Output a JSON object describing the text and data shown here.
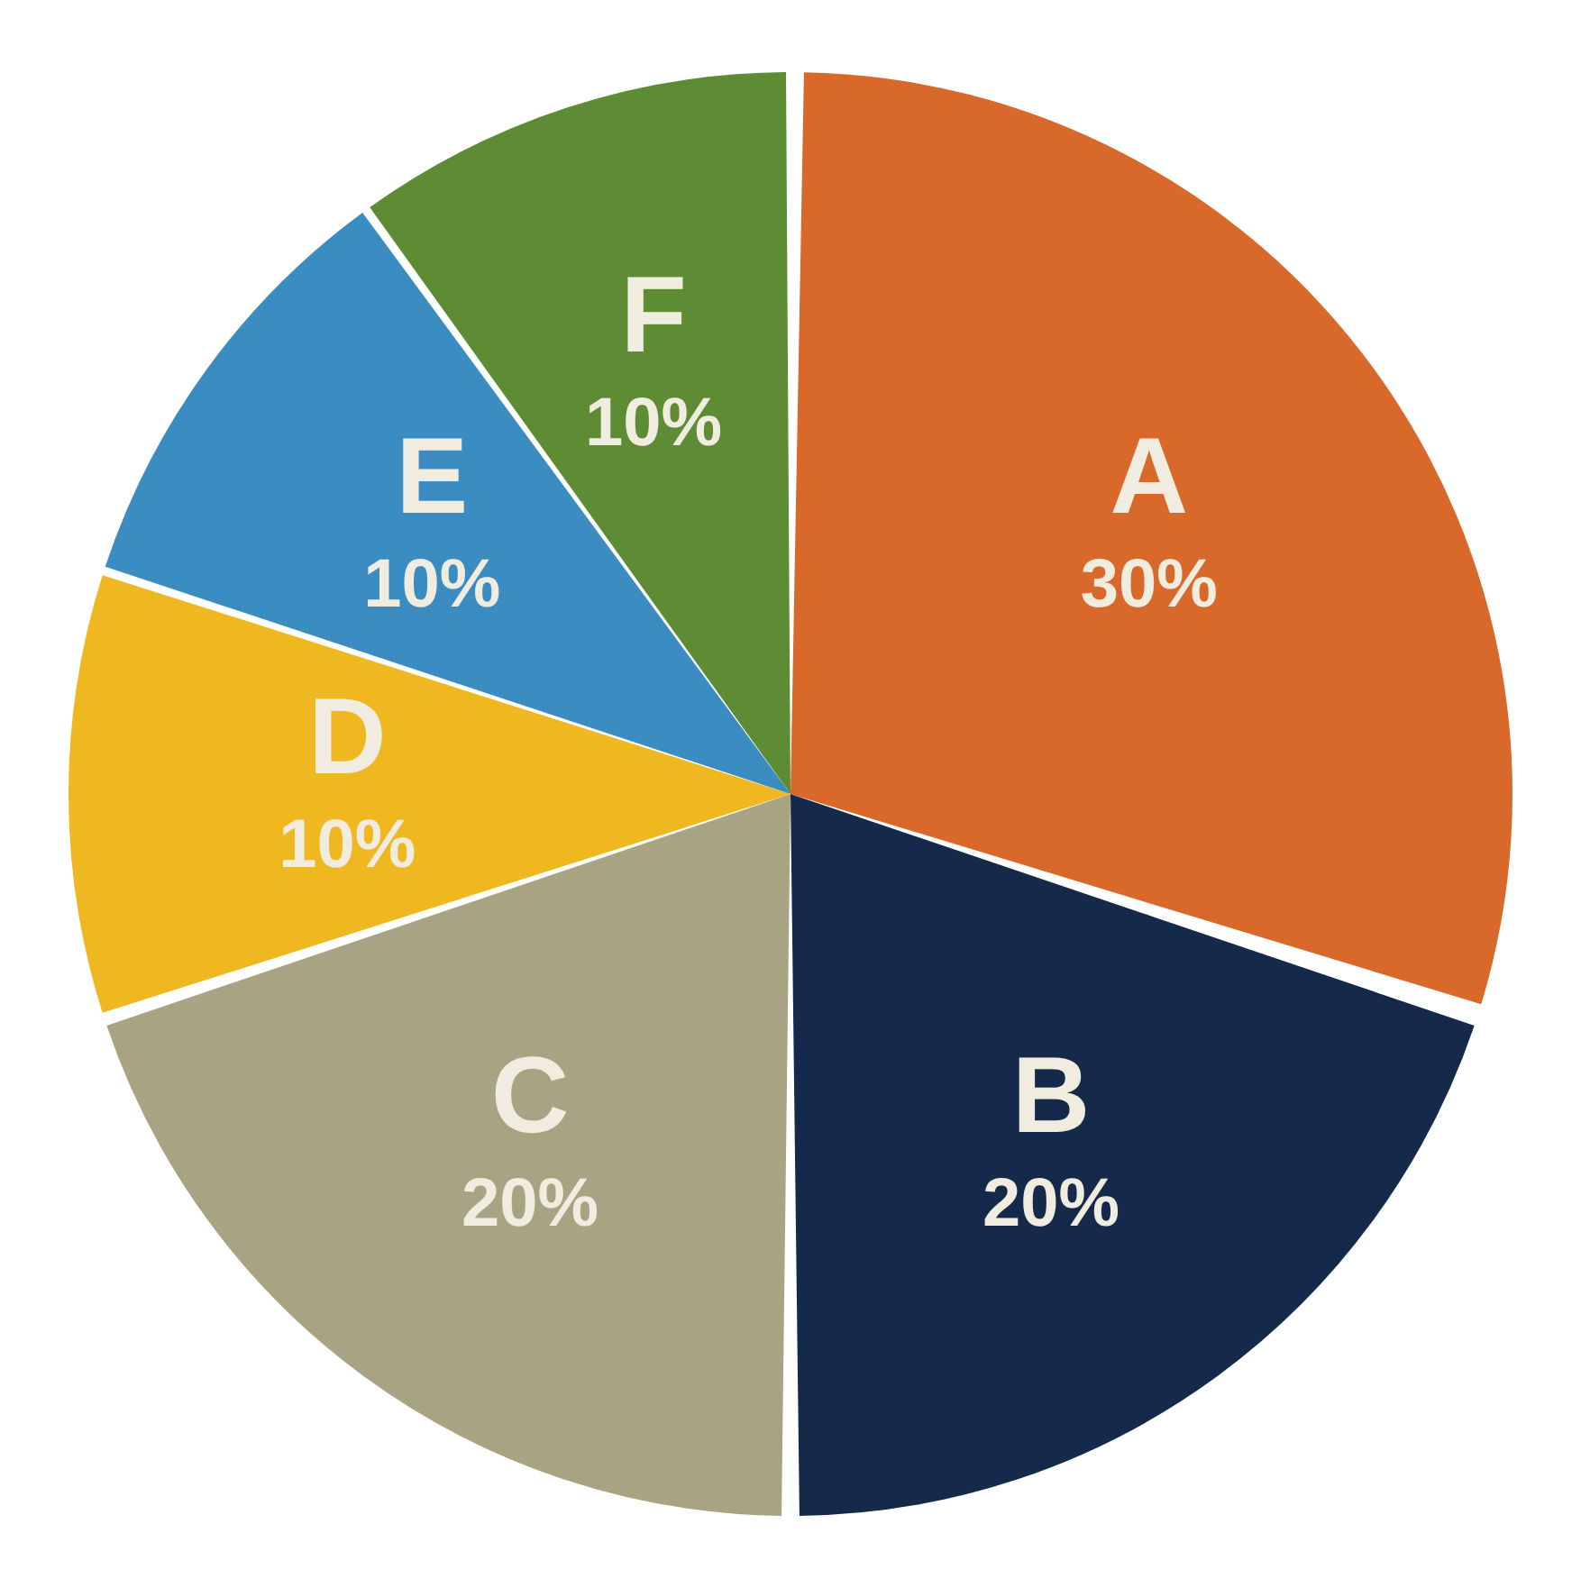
{
  "chart_data": {
    "type": "pie",
    "categories": [
      "A",
      "B",
      "C",
      "D",
      "E",
      "F"
    ],
    "values": [
      30,
      20,
      20,
      10,
      10,
      10
    ],
    "value_labels": [
      "30%",
      "20%",
      "20%",
      "10%",
      "10%",
      "10%"
    ],
    "colors": [
      "#d9692a",
      "#152a4a",
      "#a8a383",
      "#f0b820",
      "#3b8cc0",
      "#5e8c35"
    ],
    "legend": false
  }
}
